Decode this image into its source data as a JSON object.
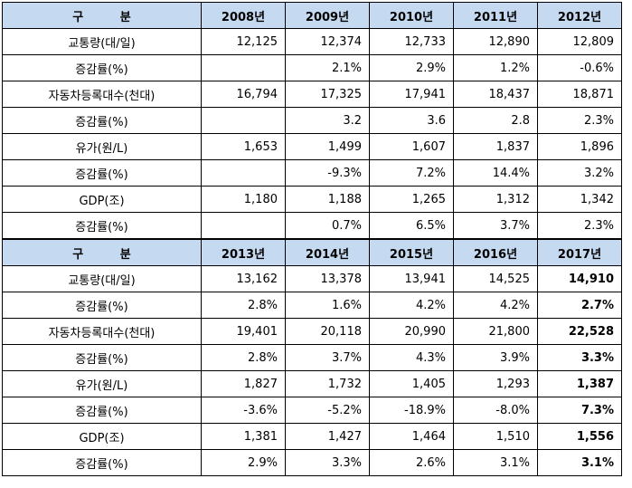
{
  "sections": [
    {
      "header": {
        "label": "구 분",
        "years": [
          "2008년",
          "2009년",
          "2010년",
          "2011년",
          "2012년"
        ]
      },
      "rows": [
        {
          "label": "교통량(대/일)",
          "values": [
            "12,125",
            "12,374",
            "12,733",
            "12,890",
            "12,809"
          ]
        },
        {
          "label": "증감률(%)",
          "values": [
            "",
            "2.1%",
            "2.9%",
            "1.2%",
            "-0.6%"
          ]
        },
        {
          "label": "자동차등록대수(천대)",
          "values": [
            "16,794",
            "17,325",
            "17,941",
            "18,437",
            "18,871"
          ]
        },
        {
          "label": "증감률(%)",
          "values": [
            "",
            "3.2",
            "3.6",
            "2.8",
            "2.3%"
          ]
        },
        {
          "label": "유가(원/L)",
          "values": [
            "1,653",
            "1,499",
            "1,607",
            "1,837",
            "1,896"
          ]
        },
        {
          "label": "증감률(%)",
          "values": [
            "",
            "-9.3%",
            "7.2%",
            "14.4%",
            "3.2%"
          ]
        },
        {
          "label": "GDP(조)",
          "values": [
            "1,180",
            "1,188",
            "1,265",
            "1,312",
            "1,342"
          ]
        },
        {
          "label": "증감률(%)",
          "values": [
            "",
            "0.7%",
            "6.5%",
            "3.7%",
            "2.3%"
          ]
        }
      ]
    },
    {
      "header": {
        "label": "구 분",
        "years": [
          "2013년",
          "2014년",
          "2015년",
          "2016년",
          "2017년"
        ]
      },
      "rows": [
        {
          "label": "교통량(대/일)",
          "values": [
            "13,162",
            "13,378",
            "13,941",
            "14,525",
            "14,910"
          ]
        },
        {
          "label": "증감률(%)",
          "values": [
            "2.8%",
            "1.6%",
            "4.2%",
            "4.2%",
            "2.7%"
          ]
        },
        {
          "label": "자동차등록대수(천대)",
          "values": [
            "19,401",
            "20,118",
            "20,990",
            "21,800",
            "22,528"
          ]
        },
        {
          "label": "증감률(%)",
          "values": [
            "2.8%",
            "3.7%",
            "4.3%",
            "3.9%",
            "3.3%"
          ]
        },
        {
          "label": "유가(원/L)",
          "values": [
            "1,827",
            "1,732",
            "1,405",
            "1,293",
            "1,387"
          ]
        },
        {
          "label": "증감률(%)",
          "values": [
            "-3.6%",
            "-5.2%",
            "-18.9%",
            "-8.0%",
            "7.3%"
          ]
        },
        {
          "label": "GDP(조)",
          "values": [
            "1,381",
            "1,427",
            "1,464",
            "1,510",
            "1,556"
          ]
        },
        {
          "label": "증감률(%)",
          "values": [
            "2.9%",
            "3.3%",
            "2.6%",
            "3.1%",
            "3.1%"
          ]
        }
      ]
    }
  ],
  "style": {
    "header_bg": "#c5d9f1",
    "border": "#000000"
  }
}
